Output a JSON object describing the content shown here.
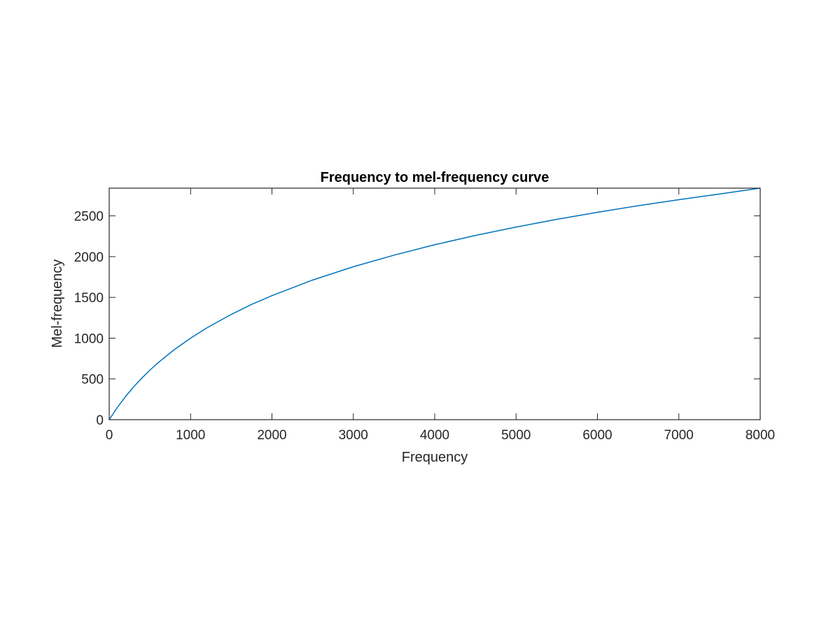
{
  "chart_data": {
    "type": "line",
    "title": "Frequency to mel-frequency curve",
    "xlabel": "Frequency",
    "ylabel": "Mel-frequency",
    "xlim": [
      0,
      8000
    ],
    "ylim": [
      0,
      2840
    ],
    "xticks": [
      0,
      1000,
      2000,
      3000,
      4000,
      5000,
      6000,
      7000,
      8000
    ],
    "xtick_labels": [
      "0",
      "1000",
      "2000",
      "3000",
      "4000",
      "5000",
      "6000",
      "7000",
      "8000"
    ],
    "yticks": [
      0,
      500,
      1000,
      1500,
      2000,
      2500
    ],
    "ytick_labels": [
      "0",
      "500",
      "1000",
      "1500",
      "2000",
      "2500"
    ],
    "grid": false,
    "legend": "none",
    "series": [
      {
        "color": "#0072BD",
        "x": [
          0,
          100,
          200,
          300,
          400,
          500,
          600,
          800,
          1000,
          1200,
          1500,
          1750,
          2000,
          2500,
          3000,
          3500,
          4000,
          4500,
          5000,
          5500,
          6000,
          6500,
          7000,
          7500,
          8000
        ],
        "y": [
          0,
          150,
          283,
          402,
          509,
          607,
          698,
          859,
          1000,
          1126,
          1291,
          1414,
          1521,
          1713,
          1876,
          2018,
          2146,
          2260,
          2363,
          2457,
          2544,
          2624,
          2698,
          2768,
          2840
        ]
      }
    ]
  }
}
